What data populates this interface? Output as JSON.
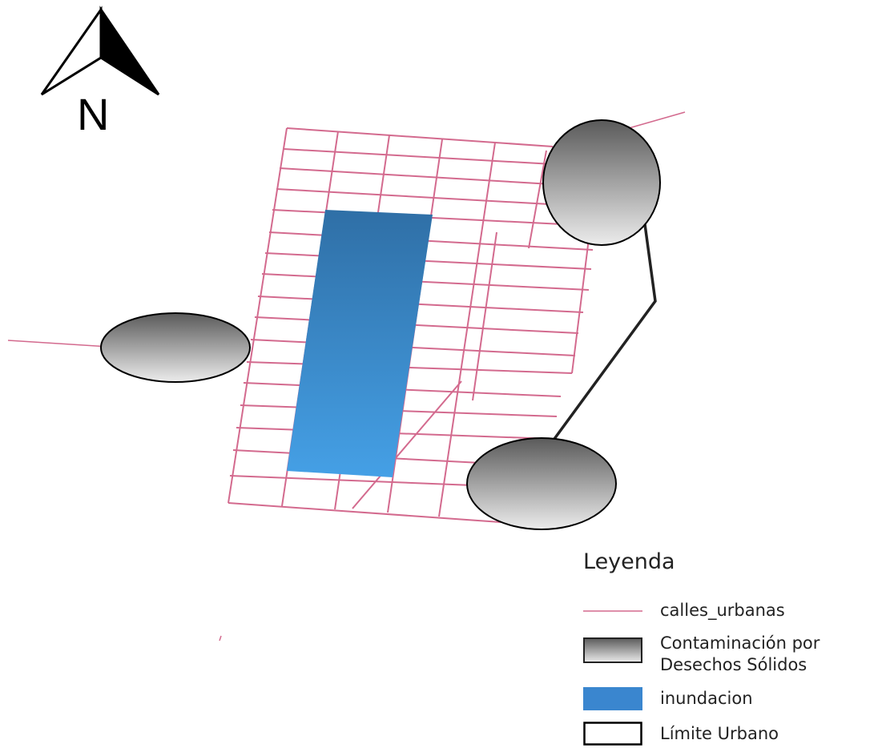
{
  "north_arrow": {
    "label": "N",
    "icon": "north-arrow-icon"
  },
  "legend": {
    "title": "Leyenda",
    "items": [
      {
        "label": "calles_urbanas",
        "icon": "street-line-icon",
        "color": "#d36a8e"
      },
      {
        "label": "Contaminación por",
        "label_line2": "Desechos Sólidos",
        "icon": "waste-contamination-icon",
        "color": "#6f6f6f"
      },
      {
        "label": "inundacion",
        "icon": "flood-area-icon",
        "color": "#3a86cf"
      },
      {
        "label": "Límite Urbano",
        "icon": "urban-boundary-icon",
        "color": "#000000"
      }
    ]
  },
  "colors": {
    "street": "#d36a8e",
    "flood_top": "#2f6fa6",
    "flood_bottom": "#45a0e6",
    "waste_top": "#5a5a5a",
    "waste_bottom": "#e6e6e6",
    "boundary": "#222222"
  }
}
